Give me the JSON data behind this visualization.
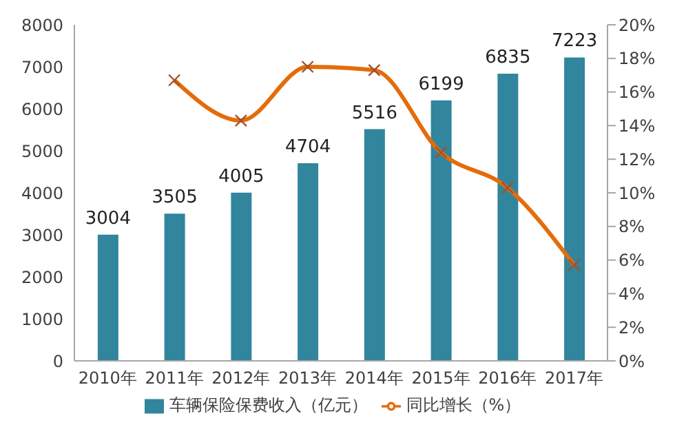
{
  "chart_data": {
    "type": "bar",
    "categories": [
      "2010年",
      "2011年",
      "2012年",
      "2013年",
      "2014年",
      "2015年",
      "2016年",
      "2017年"
    ],
    "series": [
      {
        "name": "车辆保险保费收入（亿元）",
        "color": "#31859c",
        "values": [
          3004,
          3505,
          4005,
          4704,
          5516,
          6199,
          6835,
          7223
        ],
        "value_labels": [
          "3004",
          "3505",
          "4005",
          "4704",
          "5516",
          "6199",
          "6835",
          "7223"
        ]
      },
      {
        "name": "同比增长（%）",
        "type": "line",
        "axis": "y2",
        "color": "#e46c0a",
        "marker": "cross",
        "values": [
          null,
          16.7,
          14.3,
          17.5,
          17.3,
          12.4,
          10.3,
          5.7
        ]
      }
    ],
    "ylim": [
      0,
      8000
    ],
    "yticks": [
      0,
      1000,
      2000,
      3000,
      4000,
      5000,
      6000,
      7000,
      8000
    ],
    "y2lim": [
      0,
      20
    ],
    "y2ticks": [
      {
        "value": 0,
        "label": "0%"
      },
      {
        "value": 2,
        "label": "2%"
      },
      {
        "value": 4,
        "label": "4%"
      },
      {
        "value": 6,
        "label": "6%"
      },
      {
        "value": 8,
        "label": "8%"
      },
      {
        "value": 10,
        "label": "10%"
      },
      {
        "value": 12,
        "label": "12%"
      },
      {
        "value": 14,
        "label": "14%"
      },
      {
        "value": 16,
        "label": "16%"
      },
      {
        "value": 18,
        "label": "18%"
      },
      {
        "value": 20,
        "label": "20%"
      }
    ],
    "grid": false,
    "legend": "bottom"
  }
}
